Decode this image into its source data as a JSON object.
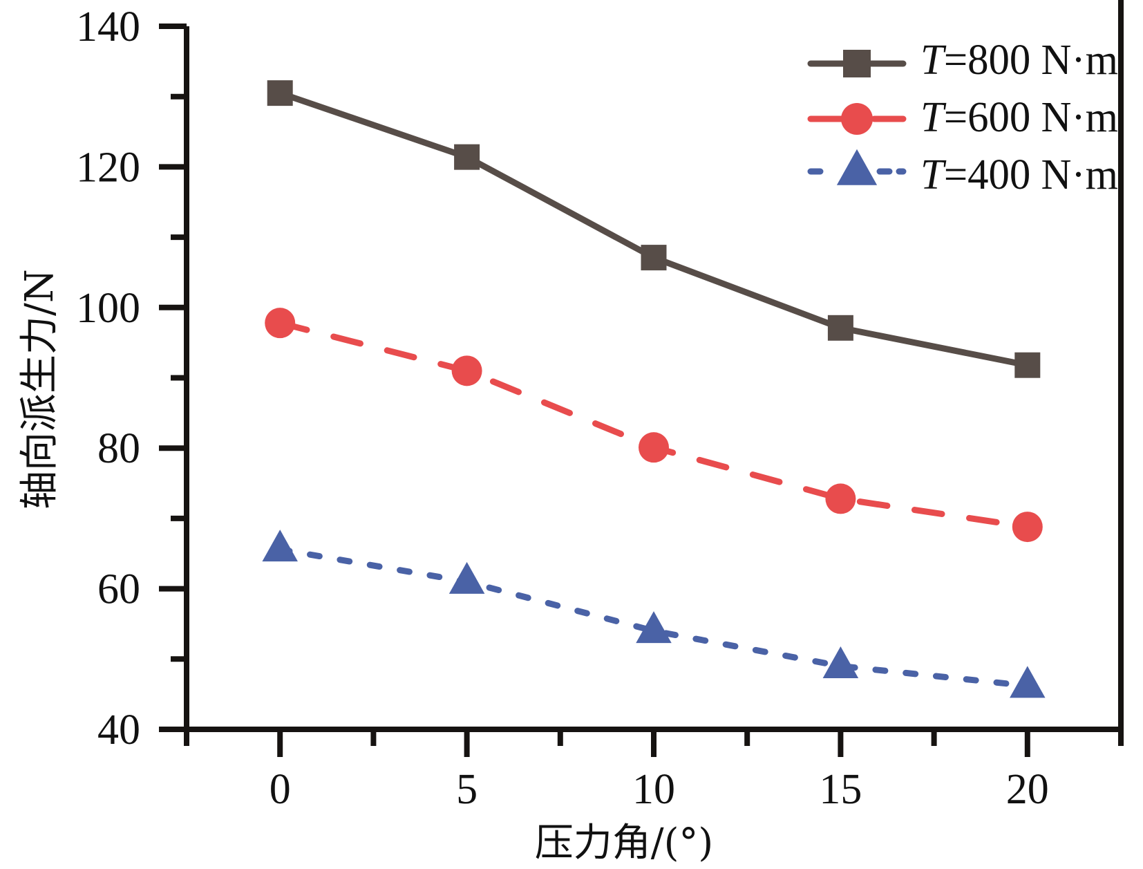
{
  "chart_data": {
    "type": "line",
    "title": "",
    "xlabel": "压力角/(°)",
    "ylabel": "轴向派生力/N",
    "xlim": [
      -2.5,
      22.5
    ],
    "ylim": [
      40,
      140
    ],
    "x": [
      0,
      5,
      10,
      15,
      20
    ],
    "x_ticks": [
      0,
      5,
      10,
      15,
      20
    ],
    "x_tick_labels": [
      "0",
      "5",
      "10",
      "15",
      "20"
    ],
    "x_minor_ticks": [
      -2.5,
      2.5,
      7.5,
      12.5,
      17.5,
      22.5
    ],
    "y_ticks": [
      40,
      60,
      80,
      100,
      120,
      140
    ],
    "y_tick_labels": [
      "40",
      "60",
      "80",
      "100",
      "120",
      "140"
    ],
    "y_minor_ticks": [
      50,
      70,
      90,
      110,
      130
    ],
    "grid": false,
    "legend_position": "top-right",
    "series": [
      {
        "name": "T=800 N·m",
        "label_var": "T",
        "label_rest": "=800 N·m",
        "marker": "square",
        "line_style": "solid",
        "color": "#574d48",
        "values": [
          130.5,
          121.4,
          107.1,
          97.1,
          91.8
        ]
      },
      {
        "name": "T=600 N·m",
        "label_var": "T",
        "label_rest": "=600 N·m",
        "marker": "circle",
        "line_style": "dashed",
        "color": "#e84c4d",
        "values": [
          97.8,
          91.0,
          80.1,
          72.8,
          68.8
        ]
      },
      {
        "name": "T=400 N·m",
        "label_var": "T",
        "label_rest": "=400 N·m",
        "marker": "triangle",
        "line_style": "dotted",
        "color": "#4a62a6",
        "values": [
          65.6,
          61.0,
          54.0,
          49.0,
          46.2
        ]
      }
    ]
  }
}
